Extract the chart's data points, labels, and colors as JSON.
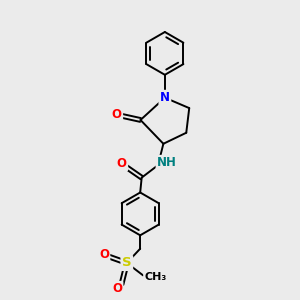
{
  "background_color": "#ebebeb",
  "figsize": [
    3.0,
    3.0
  ],
  "dpi": 100,
  "atom_colors": {
    "N": "#0000FF",
    "O": "#FF0000",
    "S": "#CCCC00",
    "C": "#000000",
    "H": "#008080"
  },
  "bond_color": "#000000",
  "bond_width": 1.4,
  "font_size_atoms": 8.5
}
